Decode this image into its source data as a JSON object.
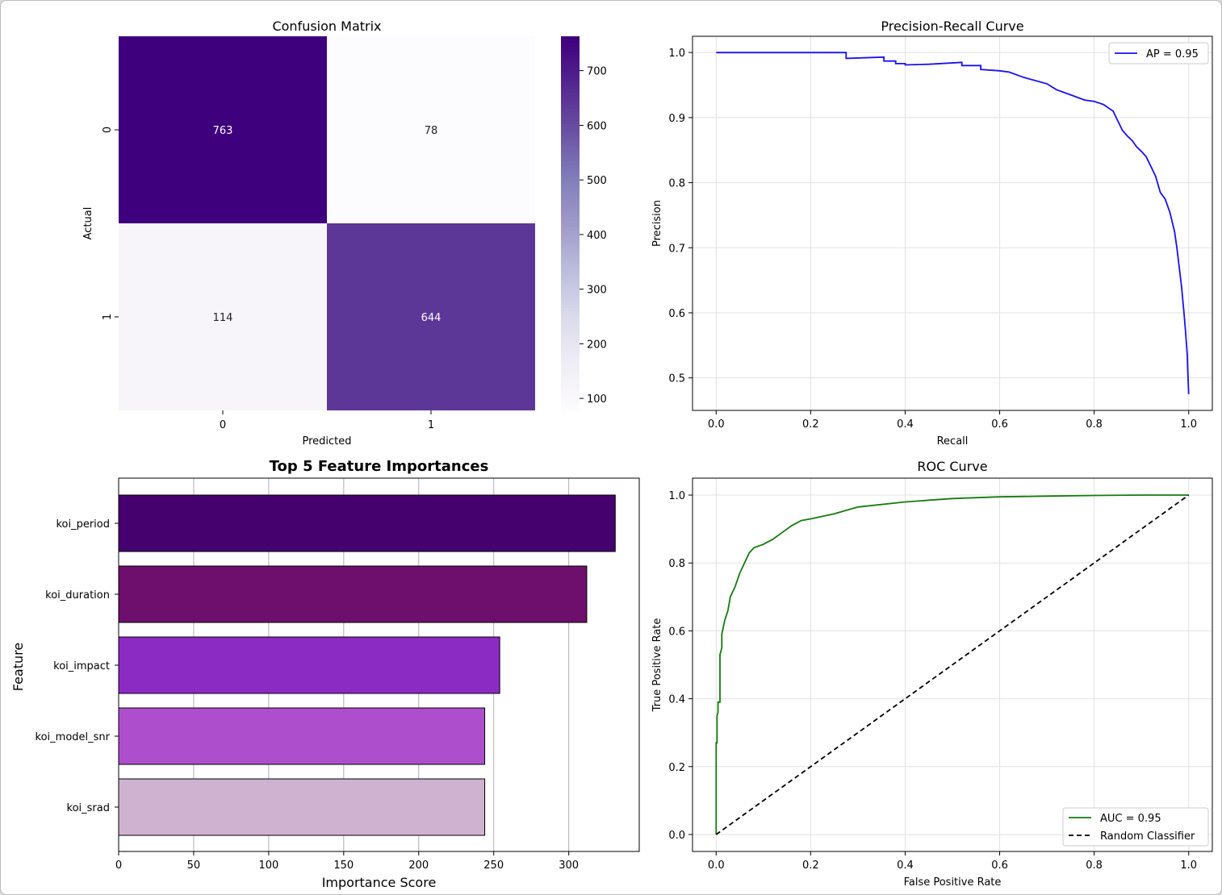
{
  "chart_data": [
    {
      "type": "heatmap",
      "title": "Confusion Matrix",
      "xlabel": "Predicted",
      "ylabel": "Actual",
      "x_categories": [
        "0",
        "1"
      ],
      "y_categories": [
        "0",
        "1"
      ],
      "values": [
        [
          763,
          78
        ],
        [
          114,
          644
        ]
      ],
      "colorbar_ticks": [
        100,
        200,
        300,
        400,
        500,
        600,
        700
      ],
      "colormap": [
        "#fcfbfd",
        "#efedf5",
        "#dadaeb",
        "#bcbddc",
        "#9e9ac8",
        "#807dba",
        "#6a51a3",
        "#54278f",
        "#3f007d"
      ],
      "vmin": 78,
      "vmax": 763
    },
    {
      "type": "line",
      "title": "Precision-Recall Curve",
      "xlabel": "Recall",
      "ylabel": "Precision",
      "xlim": [
        -0.05,
        1.05
      ],
      "ylim": [
        0.45,
        1.025
      ],
      "xticks": [
        "0.0",
        "0.2",
        "0.4",
        "0.6",
        "0.8",
        "1.0"
      ],
      "yticks": [
        "0.5",
        "0.6",
        "0.7",
        "0.8",
        "0.9",
        "1.0"
      ],
      "grid": true,
      "legend_position": "top-right",
      "series": [
        {
          "name": "AP = 0.95",
          "color": "#1a0ff0",
          "x": [
            0.0,
            0.275,
            0.275,
            0.355,
            0.355,
            0.38,
            0.38,
            0.4,
            0.4,
            0.45,
            0.52,
            0.52,
            0.56,
            0.56,
            0.6,
            0.62,
            0.65,
            0.7,
            0.72,
            0.75,
            0.78,
            0.8,
            0.82,
            0.84,
            0.85,
            0.86,
            0.87,
            0.88,
            0.89,
            0.9,
            0.91,
            0.92,
            0.93,
            0.94,
            0.95,
            0.96,
            0.97,
            0.975,
            0.98,
            0.985,
            0.99,
            0.993,
            0.995,
            0.997,
            0.998,
            0.999,
            1.0
          ],
          "y": [
            1.0,
            1.0,
            0.991,
            0.993,
            0.987,
            0.987,
            0.983,
            0.983,
            0.981,
            0.982,
            0.985,
            0.98,
            0.98,
            0.974,
            0.972,
            0.97,
            0.962,
            0.952,
            0.943,
            0.935,
            0.927,
            0.925,
            0.92,
            0.91,
            0.895,
            0.88,
            0.872,
            0.865,
            0.855,
            0.848,
            0.84,
            0.825,
            0.81,
            0.785,
            0.775,
            0.755,
            0.725,
            0.7,
            0.67,
            0.64,
            0.6,
            0.575,
            0.555,
            0.535,
            0.51,
            0.495,
            0.475
          ]
        }
      ]
    },
    {
      "type": "bar",
      "orientation": "horizontal",
      "title": "Top 5 Feature Importances",
      "xlabel": "Importance Score",
      "ylabel": "Feature",
      "categories": [
        "koi_period",
        "koi_duration",
        "koi_impact",
        "koi_model_snr",
        "koi_srad"
      ],
      "values": [
        331,
        312,
        254,
        244,
        244
      ],
      "colors": [
        "#45016e",
        "#6e0f6e",
        "#8c2bc4",
        "#ad4fcd",
        "#cfb2d0"
      ],
      "xlim": [
        0,
        347
      ],
      "xticks": [
        0,
        50,
        100,
        150,
        200,
        250,
        300
      ],
      "grid": true
    },
    {
      "type": "line",
      "title": "ROC Curve",
      "xlabel": "False Positive Rate",
      "ylabel": "True Positive Rate",
      "xlim": [
        -0.05,
        1.05
      ],
      "ylim": [
        -0.05,
        1.05
      ],
      "xticks": [
        "0.0",
        "0.2",
        "0.4",
        "0.6",
        "0.8",
        "1.0"
      ],
      "yticks": [
        "0.0",
        "0.2",
        "0.4",
        "0.6",
        "0.8",
        "1.0"
      ],
      "grid": true,
      "legend_position": "bottom-right",
      "series": [
        {
          "name": "AUC = 0.95",
          "color": "#157a0f",
          "dash": "solid",
          "x": [
            0.0,
            0.0,
            0.002,
            0.002,
            0.004,
            0.004,
            0.008,
            0.008,
            0.012,
            0.012,
            0.018,
            0.025,
            0.03,
            0.04,
            0.05,
            0.06,
            0.07,
            0.08,
            0.1,
            0.12,
            0.14,
            0.16,
            0.18,
            0.2,
            0.25,
            0.3,
            0.4,
            0.5,
            0.6,
            0.7,
            0.8,
            0.9,
            1.0
          ],
          "y": [
            0.0,
            0.27,
            0.27,
            0.35,
            0.36,
            0.39,
            0.39,
            0.53,
            0.55,
            0.59,
            0.63,
            0.66,
            0.7,
            0.73,
            0.77,
            0.8,
            0.83,
            0.845,
            0.855,
            0.87,
            0.89,
            0.91,
            0.925,
            0.93,
            0.945,
            0.965,
            0.98,
            0.99,
            0.995,
            0.997,
            0.999,
            1.0,
            1.0
          ]
        },
        {
          "name": "Random Classifier",
          "color": "#000000",
          "dash": "dashed",
          "x": [
            0.0,
            1.0
          ],
          "y": [
            0.0,
            1.0
          ]
        }
      ]
    }
  ]
}
